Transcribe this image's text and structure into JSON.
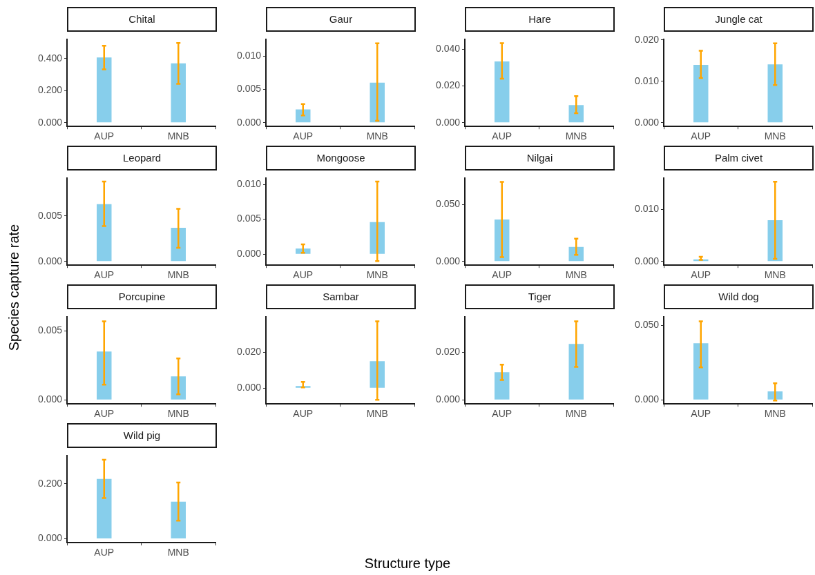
{
  "chart_data": [
    {
      "type": "bar",
      "title": "Chital",
      "categories": [
        "AUP",
        "MNB"
      ],
      "values": [
        0.407,
        0.37
      ],
      "errors": [
        [
          0.333,
          0.48
        ],
        [
          0.242,
          0.497
        ]
      ],
      "color": "#87ceeb",
      "ylim": [
        -0.023,
        0.518
      ],
      "yticks": [
        {
          "value": 0,
          "label": "0.000"
        },
        {
          "value": 0.2,
          "label": "0.200"
        },
        {
          "value": 0.4,
          "label": "0.400"
        }
      ],
      "grid": false,
      "legend": false
    },
    {
      "type": "bar",
      "title": "Gaur",
      "categories": [
        "AUP",
        "MNB"
      ],
      "values": [
        0.002,
        0.006
      ],
      "errors": [
        [
          0.0011,
          0.0028
        ],
        [
          0.0003,
          0.0119
        ]
      ],
      "color": "#87ceeb",
      "ylim": [
        -0.00056,
        0.01244
      ],
      "yticks": [
        {
          "value": 0,
          "label": "0.000"
        },
        {
          "value": 0.005,
          "label": "0.005"
        },
        {
          "value": 0.01,
          "label": "0.010"
        }
      ],
      "grid": false,
      "legend": false
    },
    {
      "type": "bar",
      "title": "Hare",
      "categories": [
        "AUP",
        "MNB"
      ],
      "values": [
        0.0333,
        0.0096
      ],
      "errors": [
        [
          0.0239,
          0.0432
        ],
        [
          0.0052,
          0.0145
        ]
      ],
      "color": "#87ceeb",
      "ylim": [
        -0.002,
        0.0451
      ],
      "yticks": [
        {
          "value": 0,
          "label": "0.000"
        },
        {
          "value": 0.02,
          "label": "0.020"
        },
        {
          "value": 0.04,
          "label": "0.040"
        }
      ],
      "grid": false,
      "legend": false
    },
    {
      "type": "bar",
      "title": "Jungle cat",
      "categories": [
        "AUP",
        "MNB"
      ],
      "values": [
        0.014,
        0.0141
      ],
      "errors": [
        [
          0.0108,
          0.0174
        ],
        [
          0.0091,
          0.0192
        ]
      ],
      "color": "#87ceeb",
      "ylim": [
        -0.0009,
        0.0201
      ],
      "yticks": [
        {
          "value": 0,
          "label": "0.000"
        },
        {
          "value": 0.01,
          "label": "0.010"
        },
        {
          "value": 0.02,
          "label": "0.020"
        }
      ],
      "grid": false,
      "legend": false
    },
    {
      "type": "bar",
      "title": "Leopard",
      "ylabel": "Species capture rate",
      "categories": [
        "AUP",
        "MNB"
      ],
      "values": [
        0.0063,
        0.0037
      ],
      "errors": [
        [
          0.0039,
          0.0088
        ],
        [
          0.0015,
          0.0058
        ]
      ],
      "color": "#87ceeb",
      "ylim": [
        -0.00041,
        0.00914
      ],
      "yticks": [
        {
          "value": 0,
          "label": "0.000"
        },
        {
          "value": 0.005,
          "label": "0.005"
        }
      ],
      "grid": false,
      "legend": false
    },
    {
      "type": "bar",
      "title": "Mongoose",
      "categories": [
        "AUP",
        "MNB"
      ],
      "values": [
        0.0008,
        0.0046
      ],
      "errors": [
        [
          0.0002,
          0.0014
        ],
        [
          -0.001,
          0.0104
        ]
      ],
      "color": "#87ceeb",
      "ylim": [
        -0.00158,
        0.01085
      ],
      "yticks": [
        {
          "value": 0,
          "label": "0.000"
        },
        {
          "value": 0.005,
          "label": "0.005"
        },
        {
          "value": 0.01,
          "label": "0.010"
        }
      ],
      "grid": false,
      "legend": false
    },
    {
      "type": "bar",
      "title": "Nilgai",
      "categories": [
        "AUP",
        "MNB"
      ],
      "values": [
        0.0368,
        0.0127
      ],
      "errors": [
        [
          0.0038,
          0.0698
        ],
        [
          0.0057,
          0.02
        ]
      ],
      "color": "#87ceeb",
      "ylim": [
        -0.0033,
        0.0729
      ],
      "yticks": [
        {
          "value": 0,
          "label": "0.000"
        },
        {
          "value": 0.05,
          "label": "0.050"
        }
      ],
      "grid": false,
      "legend": false
    },
    {
      "type": "bar",
      "title": "Palm civet",
      "categories": [
        "AUP",
        "MNB"
      ],
      "values": [
        0.0004,
        0.0079
      ],
      "errors": [
        [
          0.0003,
          0.0009
        ],
        [
          0.0005,
          0.0153
        ]
      ],
      "color": "#87ceeb",
      "ylim": [
        -0.00072,
        0.01593
      ],
      "yticks": [
        {
          "value": 0,
          "label": "0.000"
        },
        {
          "value": 0.01,
          "label": "0.010"
        }
      ],
      "grid": false,
      "legend": false
    },
    {
      "type": "bar",
      "title": "Porcupine",
      "categories": [
        "AUP",
        "MNB"
      ],
      "values": [
        0.0035,
        0.0017
      ],
      "errors": [
        [
          0.0011,
          0.0057
        ],
        [
          0.0004,
          0.003
        ]
      ],
      "color": "#87ceeb",
      "ylim": [
        -0.0003,
        0.006
      ],
      "yticks": [
        {
          "value": 0,
          "label": "0.000"
        },
        {
          "value": 0.005,
          "label": "0.005"
        }
      ],
      "grid": false,
      "legend": false
    },
    {
      "type": "bar",
      "title": "Sambar",
      "xlabel": "Structure type",
      "categories": [
        "AUP",
        "MNB"
      ],
      "values": [
        0.0012,
        0.015
      ],
      "errors": [
        [
          0.0004,
          0.0035
        ],
        [
          -0.0065,
          0.0373
        ]
      ],
      "color": "#87ceeb",
      "ylim": [
        -0.0088,
        0.0396
      ],
      "yticks": [
        {
          "value": 0,
          "label": "0.000"
        },
        {
          "value": 0.02,
          "label": "0.020"
        }
      ],
      "grid": false,
      "legend": false
    },
    {
      "type": "bar",
      "title": "Tiger",
      "categories": [
        "AUP",
        "MNB"
      ],
      "values": [
        0.0116,
        0.0235
      ],
      "errors": [
        [
          0.0084,
          0.0148
        ],
        [
          0.0139,
          0.033
        ]
      ],
      "color": "#87ceeb",
      "ylim": [
        -0.0017,
        0.0348
      ],
      "yticks": [
        {
          "value": 0,
          "label": "0.000"
        },
        {
          "value": 0.02,
          "label": "0.020"
        }
      ],
      "grid": false,
      "legend": false
    },
    {
      "type": "bar",
      "title": "Wild dog",
      "categories": [
        "AUP",
        "MNB"
      ],
      "values": [
        0.038,
        0.0056
      ],
      "errors": [
        [
          0.0218,
          0.0528
        ],
        [
          -0.0005,
          0.0111
        ]
      ],
      "color": "#87ceeb",
      "ylim": [
        -0.0028,
        0.0556
      ],
      "yticks": [
        {
          "value": 0,
          "label": "0.000"
        },
        {
          "value": 0.05,
          "label": "0.050"
        }
      ],
      "grid": false,
      "legend": false
    },
    {
      "type": "bar",
      "title": "Wild pig",
      "categories": [
        "AUP",
        "MNB"
      ],
      "values": [
        0.218,
        0.135
      ],
      "errors": [
        [
          0.148,
          0.288
        ],
        [
          0.066,
          0.205
        ]
      ],
      "color": "#87ceeb",
      "ylim": [
        -0.0146,
        0.302
      ],
      "yticks": [
        {
          "value": 0,
          "label": "0.000"
        },
        {
          "value": 0.2,
          "label": "0.200"
        }
      ],
      "grid": false,
      "legend": false
    }
  ]
}
